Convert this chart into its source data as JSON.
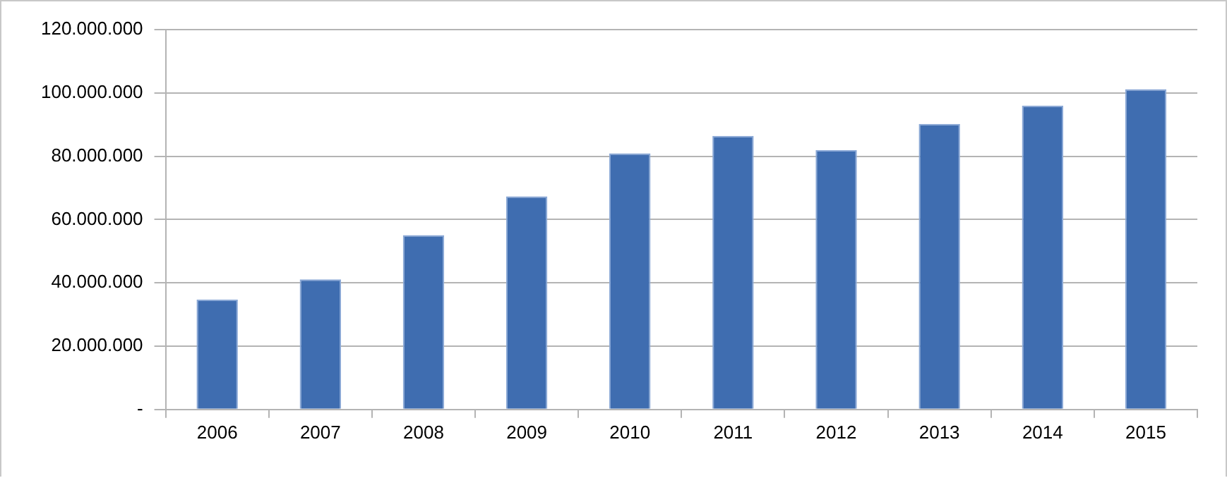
{
  "chart_data": {
    "type": "bar",
    "categories": [
      "2006",
      "2007",
      "2008",
      "2009",
      "2010",
      "2011",
      "2012",
      "2013",
      "2014",
      "2015"
    ],
    "values": [
      34700000,
      41100000,
      55100000,
      67300000,
      80900000,
      86400000,
      81900000,
      90200000,
      96000000,
      101200000
    ],
    "color": "#3f6db0",
    "ylim": [
      0,
      120000000
    ],
    "yticks": [
      {
        "value": 0,
        "label": "-"
      },
      {
        "value": 20000000,
        "label": "20.000.000"
      },
      {
        "value": 40000000,
        "label": "40.000.000"
      },
      {
        "value": 60000000,
        "label": "60.000.000"
      },
      {
        "value": 80000000,
        "label": "80.000.000"
      },
      {
        "value": 100000000,
        "label": "100.000.000"
      },
      {
        "value": 120000000,
        "label": "120.000.000"
      }
    ],
    "grid": "y",
    "legend": false
  }
}
